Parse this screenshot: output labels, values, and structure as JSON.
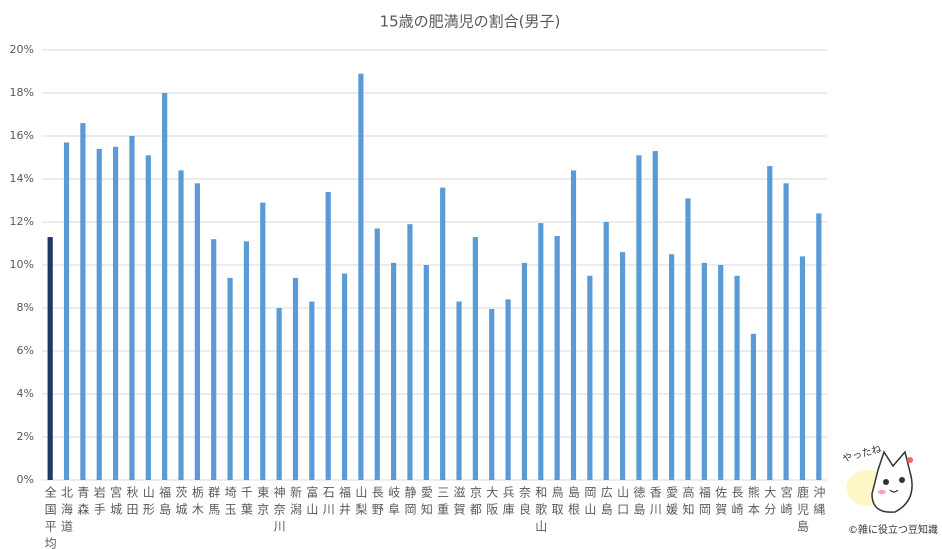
{
  "chart_data": {
    "type": "bar",
    "title": "15歳の肥満児の割合(男子)",
    "categories": [
      "全国平均",
      "北海道",
      "青森",
      "岩手",
      "宮城",
      "秋田",
      "山形",
      "福島",
      "茨城",
      "栃木",
      "群馬",
      "埼玉",
      "千葉",
      "東京",
      "神奈川",
      "新潟",
      "富山",
      "石川",
      "福井",
      "山梨",
      "長野",
      "岐阜",
      "静岡",
      "愛知",
      "三重",
      "滋賀",
      "京都",
      "大阪",
      "兵庫",
      "奈良",
      "和歌山",
      "鳥取",
      "島根",
      "岡山",
      "広島",
      "山口",
      "徳島",
      "香川",
      "愛媛",
      "高知",
      "福岡",
      "佐賀",
      "長崎",
      "熊本",
      "大分",
      "宮崎",
      "鹿児島",
      "沖縄"
    ],
    "values": [
      11.3,
      15.7,
      16.6,
      15.4,
      15.5,
      16.0,
      15.1,
      18.0,
      14.4,
      13.8,
      11.2,
      9.4,
      11.1,
      12.9,
      8.0,
      9.4,
      8.3,
      13.4,
      9.6,
      18.9,
      11.7,
      10.1,
      11.9,
      10.0,
      13.6,
      8.3,
      11.3,
      7.95,
      8.4,
      10.1,
      11.95,
      11.35,
      14.4,
      9.5,
      12.0,
      10.6,
      15.1,
      15.3,
      10.5,
      13.1,
      10.1,
      10.0,
      9.5,
      6.8,
      14.6,
      13.8,
      10.4,
      12.4
    ],
    "colors": [
      "#203864",
      "#5b9bd5",
      "#5b9bd5",
      "#5b9bd5",
      "#5b9bd5",
      "#5b9bd5",
      "#5b9bd5",
      "#5b9bd5",
      "#5b9bd5",
      "#5b9bd5",
      "#5b9bd5",
      "#5b9bd5",
      "#5b9bd5",
      "#5b9bd5",
      "#5b9bd5",
      "#5b9bd5",
      "#5b9bd5",
      "#5b9bd5",
      "#5b9bd5",
      "#5b9bd5",
      "#5b9bd5",
      "#5b9bd5",
      "#5b9bd5",
      "#5b9bd5",
      "#5b9bd5",
      "#5b9bd5",
      "#5b9bd5",
      "#5b9bd5",
      "#5b9bd5",
      "#5b9bd5",
      "#5b9bd5",
      "#5b9bd5",
      "#5b9bd5",
      "#5b9bd5",
      "#5b9bd5",
      "#5b9bd5",
      "#5b9bd5",
      "#5b9bd5",
      "#5b9bd5",
      "#5b9bd5",
      "#5b9bd5",
      "#5b9bd5",
      "#5b9bd5",
      "#5b9bd5",
      "#5b9bd5",
      "#5b9bd5",
      "#5b9bd5",
      "#5b9bd5"
    ],
    "ylim": [
      0,
      20
    ],
    "yticks": [
      {
        "value": 0,
        "label": "0%"
      },
      {
        "value": 2,
        "label": "2%"
      },
      {
        "value": 4,
        "label": "4%"
      },
      {
        "value": 6,
        "label": "6%"
      },
      {
        "value": 8,
        "label": "8%"
      },
      {
        "value": 10,
        "label": "10%"
      },
      {
        "value": 12,
        "label": "12%"
      },
      {
        "value": 14,
        "label": "14%"
      },
      {
        "value": 16,
        "label": "16%"
      },
      {
        "value": 18,
        "label": "18%"
      },
      {
        "value": 20,
        "label": "20%"
      }
    ],
    "grid": true,
    "badge": "やったね",
    "watermark": "©雑に役立つ豆知識"
  }
}
